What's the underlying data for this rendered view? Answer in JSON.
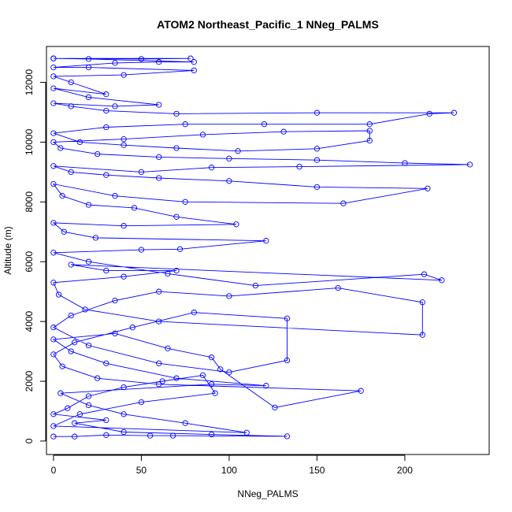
{
  "chart_data": {
    "type": "line",
    "title": "ATOM2 Northeast_Pacific_1 NNeg_PALMS",
    "xlabel": "NNeg_PALMS",
    "ylabel": "Altitude (m)",
    "xlim": [
      -4,
      248
    ],
    "ylim": [
      -450,
      13200
    ],
    "xticks": [
      0,
      50,
      100,
      150,
      200
    ],
    "yticks": [
      0,
      2000,
      4000,
      6000,
      8000,
      10000,
      12000
    ],
    "grid": false,
    "color": "#0000ff",
    "series": [
      {
        "points": [
          [
            0,
            150
          ],
          [
            12,
            150
          ],
          [
            30,
            200
          ],
          [
            55,
            180
          ],
          [
            68,
            180
          ],
          [
            133,
            160
          ],
          [
            90,
            220
          ],
          [
            40,
            300
          ],
          [
            12,
            600
          ],
          [
            30,
            700
          ],
          [
            0,
            900
          ],
          [
            8,
            1100
          ],
          [
            20,
            1500
          ],
          [
            40,
            1800
          ],
          [
            62,
            2000
          ],
          [
            85,
            2200
          ],
          [
            92,
            1600
          ],
          [
            50,
            1300
          ],
          [
            15,
            900
          ],
          [
            0,
            500
          ],
          [
            110,
            280
          ],
          [
            75,
            600
          ],
          [
            40,
            900
          ],
          [
            20,
            1200
          ],
          [
            4,
            1600
          ],
          [
            90,
            1900
          ],
          [
            121,
            1850
          ],
          [
            70,
            2100
          ],
          [
            30,
            2600
          ],
          [
            10,
            3000
          ],
          [
            0,
            3400
          ],
          [
            35,
            3600
          ],
          [
            65,
            3100
          ],
          [
            90,
            2800
          ],
          [
            95,
            2400
          ],
          [
            126,
            1120
          ],
          [
            175,
            1680
          ],
          [
            60,
            1900
          ],
          [
            25,
            2100
          ],
          [
            5,
            2500
          ],
          [
            0,
            2900
          ],
          [
            12,
            3300
          ],
          [
            45,
            3800
          ],
          [
            80,
            4300
          ],
          [
            133,
            4100
          ],
          [
            133,
            2700
          ],
          [
            100,
            2300
          ],
          [
            60,
            2600
          ],
          [
            20,
            3200
          ],
          [
            0,
            3800
          ],
          [
            10,
            4200
          ],
          [
            35,
            4700
          ],
          [
            60,
            5000
          ],
          [
            100,
            4850
          ],
          [
            162,
            5120
          ],
          [
            210,
            4640
          ],
          [
            210,
            3550
          ],
          [
            60,
            4000
          ],
          [
            18,
            4400
          ],
          [
            3,
            4900
          ],
          [
            0,
            5300
          ],
          [
            40,
            5500
          ],
          [
            70,
            5700
          ],
          [
            30,
            5700
          ],
          [
            10,
            5900
          ],
          [
            221,
            5380
          ],
          [
            211,
            5580
          ],
          [
            115,
            5200
          ],
          [
            65,
            5600
          ],
          [
            20,
            6000
          ],
          [
            0,
            6300
          ],
          [
            50,
            6400
          ],
          [
            72,
            6420
          ],
          [
            121,
            6700
          ],
          [
            24,
            6800
          ],
          [
            6,
            7000
          ],
          [
            0,
            7300
          ],
          [
            40,
            7200
          ],
          [
            104,
            7250
          ],
          [
            70,
            7500
          ],
          [
            46,
            7800
          ],
          [
            20,
            7900
          ],
          [
            5,
            8200
          ],
          [
            0,
            8600
          ],
          [
            35,
            8200
          ],
          [
            75,
            8000
          ],
          [
            165,
            7950
          ],
          [
            213,
            8450
          ],
          [
            150,
            8500
          ],
          [
            100,
            8700
          ],
          [
            60,
            8800
          ],
          [
            30,
            8900
          ],
          [
            10,
            9000
          ],
          [
            0,
            9200
          ],
          [
            50,
            9000
          ],
          [
            90,
            9150
          ],
          [
            140,
            9180
          ],
          [
            237,
            9250
          ],
          [
            200,
            9300
          ],
          [
            150,
            9400
          ],
          [
            100,
            9450
          ],
          [
            60,
            9500
          ],
          [
            25,
            9600
          ],
          [
            4,
            9800
          ],
          [
            0,
            10000
          ],
          [
            40,
            10100
          ],
          [
            85,
            10250
          ],
          [
            131,
            10350
          ],
          [
            180,
            10380
          ],
          [
            180,
            10050
          ],
          [
            150,
            9780
          ],
          [
            105,
            9700
          ],
          [
            70,
            9800
          ],
          [
            40,
            9900
          ],
          [
            15,
            10000
          ],
          [
            0,
            10300
          ],
          [
            30,
            10500
          ],
          [
            75,
            10600
          ],
          [
            120,
            10600
          ],
          [
            180,
            10600
          ],
          [
            214,
            10950
          ],
          [
            228,
            10980
          ],
          [
            150,
            10980
          ],
          [
            70,
            10950
          ],
          [
            30,
            11050
          ],
          [
            10,
            11200
          ],
          [
            0,
            11300
          ],
          [
            35,
            11200
          ],
          [
            60,
            11250
          ],
          [
            20,
            11500
          ],
          [
            0,
            11800
          ],
          [
            30,
            11600
          ],
          [
            10,
            12000
          ],
          [
            0,
            12200
          ],
          [
            40,
            12250
          ],
          [
            80,
            12400
          ],
          [
            20,
            12500
          ],
          [
            0,
            12500
          ],
          [
            35,
            12650
          ],
          [
            60,
            12680
          ],
          [
            80,
            12680
          ],
          [
            20,
            12780
          ],
          [
            0,
            12800
          ],
          [
            50,
            12780
          ],
          [
            78,
            12800
          ],
          [
            0,
            12800
          ]
        ]
      }
    ]
  }
}
